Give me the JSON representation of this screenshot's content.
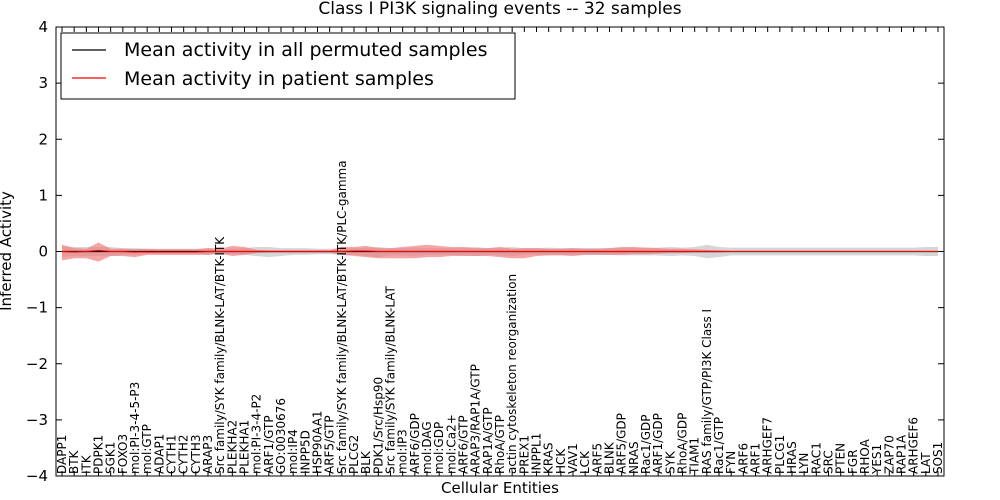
{
  "chart_data": {
    "type": "line",
    "title": "Class I PI3K signaling events -- 32 samples",
    "xlabel": "Cellular Entities",
    "ylabel": "Inferred Activity",
    "ylim": [
      -4,
      4
    ],
    "yticks": [
      4,
      3,
      2,
      1,
      0,
      -1,
      -2,
      -3,
      -4
    ],
    "ytick_labels": [
      "4",
      "3",
      "2",
      "1",
      "0",
      "−1",
      "−2",
      "−3",
      "−4"
    ],
    "legend_position": "top-left",
    "grid": false,
    "colors": {
      "permuted": "#000000",
      "patient": "#ff0000",
      "patient_band": "#f08080",
      "permuted_band": "#c8c8c8"
    },
    "categories": [
      "DAPP1",
      "BTK",
      "ITK",
      "PDPK1",
      "SGK1",
      "FOXO3",
      "mol:PI-3-4-5-P3",
      "mol:GTP",
      "ADAP1",
      "CYTH1",
      "CYTH2",
      "CYTH3",
      "ARAP3",
      "Src family/SYK family/BLNK-LAT/BTK-ITK",
      "PLEKHA2",
      "PLEKHA1",
      "mol:PI-3-4-P2",
      "ARF1/GTP",
      "GO:0030676",
      "mol:IP4",
      "INPP5D",
      "HSP90AA1",
      "ARF5/GTP",
      "Src family/SYK family/BLNK-LAT/BTK-ITK/PLC-gamma",
      "PLCG2",
      "BLK",
      "PDK1/Src/Hsp90",
      "Src family/SYK family/BLNK-LAT",
      "mol:IP3",
      "ARF6/GDP",
      "mol:DAG",
      "mol:GDP",
      "mol:Ca2+",
      "ARF6/GTP",
      "ARAP3/RAP1A/GTP",
      "RAP1A/GTP",
      "RhoA/GTP",
      "actin cytoskeleton reorganization",
      "PREX1",
      "INPPL1",
      "KRAS",
      "HCK",
      "VAV1",
      "LCK",
      "ARF5",
      "BLNK",
      "ARF5/GDP",
      "NRAS",
      "Rac1/GDP",
      "ARF1/GDP",
      "SYK",
      "RhoA/GDP",
      "TIAM1",
      "RAS family/GTP/PI3K Class I",
      "Rac1/GTP",
      "FYN",
      "ARF6",
      "ARF1",
      "ARHGEF7",
      "PLCG1",
      "HRAS",
      "LYN",
      "RAC1",
      "SRC",
      "PTEN",
      "FGR",
      "RHOA",
      "YES1",
      "ZAP70",
      "RAP1A",
      "ARHGEF6",
      "LAT",
      "SOS1"
    ],
    "series": [
      {
        "name": "Mean activity in all permuted samples",
        "values": [
          0.0,
          0.0,
          0.0,
          0.0,
          0.0,
          0.0,
          0.0,
          0.0,
          0.0,
          0.0,
          0.0,
          0.0,
          0.0,
          0.0,
          0.0,
          0.0,
          0.0,
          0.0,
          0.0,
          0.0,
          0.0,
          0.0,
          0.0,
          0.0,
          0.0,
          0.0,
          0.0,
          0.0,
          0.0,
          0.0,
          0.0,
          0.0,
          0.0,
          0.0,
          0.0,
          0.0,
          0.0,
          0.0,
          0.0,
          0.0,
          0.0,
          0.0,
          0.0,
          0.0,
          0.0,
          0.0,
          0.0,
          0.0,
          0.0,
          0.0,
          0.0,
          0.0,
          0.0,
          0.0,
          0.0,
          0.0,
          0.0,
          0.0,
          0.0,
          0.0,
          0.0,
          0.0,
          0.0,
          0.0,
          0.0,
          0.0,
          0.0,
          0.0,
          0.0,
          0.0,
          0.0,
          0.0,
          0.0
        ],
        "band_upper": [
          0.1,
          0.08,
          0.08,
          0.08,
          0.08,
          0.06,
          0.06,
          0.05,
          0.05,
          0.05,
          0.05,
          0.05,
          0.06,
          0.05,
          0.05,
          0.06,
          0.08,
          0.08,
          0.06,
          0.06,
          0.06,
          0.05,
          0.05,
          0.06,
          0.06,
          0.07,
          0.08,
          0.06,
          0.06,
          0.07,
          0.06,
          0.06,
          0.06,
          0.07,
          0.08,
          0.06,
          0.07,
          0.08,
          0.06,
          0.06,
          0.07,
          0.06,
          0.06,
          0.06,
          0.06,
          0.06,
          0.07,
          0.07,
          0.07,
          0.07,
          0.08,
          0.07,
          0.08,
          0.12,
          0.08,
          0.07,
          0.07,
          0.07,
          0.07,
          0.07,
          0.07,
          0.07,
          0.07,
          0.07,
          0.07,
          0.07,
          0.07,
          0.07,
          0.07,
          0.07,
          0.07,
          0.08,
          0.08
        ],
        "band_lower": [
          -0.1,
          -0.08,
          -0.08,
          -0.08,
          -0.08,
          -0.06,
          -0.06,
          -0.05,
          -0.05,
          -0.05,
          -0.05,
          -0.05,
          -0.06,
          -0.05,
          -0.05,
          -0.06,
          -0.08,
          -0.1,
          -0.08,
          -0.06,
          -0.06,
          -0.05,
          -0.05,
          -0.06,
          -0.06,
          -0.08,
          -0.1,
          -0.07,
          -0.07,
          -0.08,
          -0.06,
          -0.06,
          -0.06,
          -0.07,
          -0.08,
          -0.06,
          -0.07,
          -0.08,
          -0.06,
          -0.06,
          -0.07,
          -0.06,
          -0.06,
          -0.06,
          -0.06,
          -0.06,
          -0.07,
          -0.07,
          -0.07,
          -0.07,
          -0.08,
          -0.07,
          -0.08,
          -0.12,
          -0.1,
          -0.07,
          -0.07,
          -0.07,
          -0.07,
          -0.07,
          -0.07,
          -0.07,
          -0.07,
          -0.07,
          -0.07,
          -0.07,
          -0.07,
          -0.07,
          -0.07,
          -0.07,
          -0.07,
          -0.08,
          -0.08
        ]
      },
      {
        "name": "Mean activity in patient samples",
        "values": [
          0.0,
          -0.01,
          0.0,
          0.02,
          0.0,
          0.0,
          -0.01,
          -0.01,
          -0.01,
          -0.01,
          -0.01,
          -0.01,
          0.0,
          0.0,
          0.0,
          0.0,
          0.0,
          0.0,
          0.0,
          0.0,
          0.0,
          0.0,
          0.0,
          0.0,
          0.01,
          0.01,
          0.0,
          0.0,
          0.0,
          0.0,
          0.0,
          0.0,
          0.0,
          0.0,
          0.0,
          0.0,
          0.0,
          0.0,
          0.0,
          0.0,
          0.0,
          0.0,
          0.0,
          0.0,
          0.0,
          0.0,
          0.0,
          0.0,
          0.0,
          0.0,
          0.0,
          0.0,
          0.0,
          0.0,
          0.0,
          0.0,
          0.0,
          0.0,
          0.0,
          0.0,
          0.0,
          0.0,
          0.0,
          0.0,
          0.0,
          0.0,
          0.0,
          0.0,
          0.0,
          0.0,
          0.0,
          0.0,
          0.0
        ],
        "band_upper": [
          0.12,
          0.06,
          0.05,
          0.16,
          0.05,
          0.05,
          0.04,
          0.05,
          0.04,
          0.04,
          0.04,
          0.04,
          0.06,
          0.05,
          0.1,
          0.08,
          0.03,
          0.02,
          0.02,
          0.02,
          0.02,
          0.02,
          0.02,
          0.08,
          0.08,
          0.1,
          0.06,
          0.06,
          0.08,
          0.1,
          0.12,
          0.1,
          0.08,
          0.08,
          0.06,
          0.06,
          0.08,
          0.05,
          0.06,
          0.06,
          0.05,
          0.05,
          0.06,
          0.05,
          0.05,
          0.06,
          0.08,
          0.08,
          0.07,
          0.06,
          0.05,
          0.05,
          0.04,
          0.03,
          0.02,
          0.01,
          0.01,
          0.01,
          0.01,
          0.01,
          0.01,
          0.01,
          0.01,
          0.01,
          0.01,
          0.01,
          0.01,
          0.01,
          0.01,
          0.01,
          0.01,
          0.01,
          0.01
        ],
        "band_lower": [
          -0.16,
          -0.12,
          -0.12,
          -0.18,
          -0.08,
          -0.08,
          -0.1,
          -0.06,
          -0.06,
          -0.06,
          -0.06,
          -0.06,
          -0.06,
          -0.04,
          -0.08,
          -0.06,
          -0.03,
          -0.02,
          -0.02,
          -0.02,
          -0.02,
          -0.02,
          -0.02,
          -0.06,
          -0.08,
          -0.1,
          -0.12,
          -0.12,
          -0.12,
          -0.12,
          -0.1,
          -0.1,
          -0.08,
          -0.08,
          -0.08,
          -0.08,
          -0.1,
          -0.12,
          -0.12,
          -0.08,
          -0.07,
          -0.07,
          -0.08,
          -0.06,
          -0.06,
          -0.06,
          -0.06,
          -0.05,
          -0.05,
          -0.04,
          -0.03,
          -0.03,
          -0.02,
          -0.02,
          -0.02,
          -0.01,
          -0.01,
          -0.01,
          -0.01,
          -0.01,
          -0.01,
          -0.01,
          -0.01,
          -0.01,
          -0.01,
          -0.01,
          -0.01,
          -0.01,
          -0.01,
          -0.01,
          -0.01,
          -0.01,
          -0.01
        ]
      }
    ]
  }
}
